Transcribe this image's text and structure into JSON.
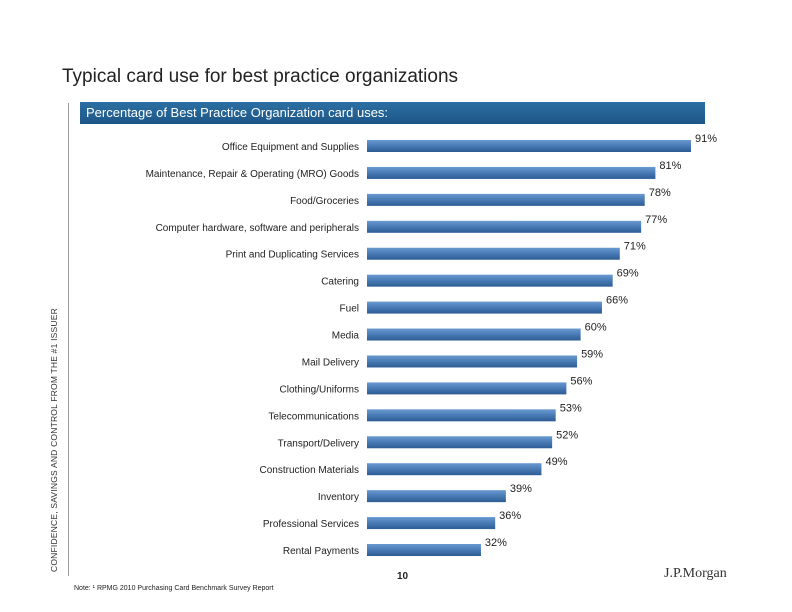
{
  "title": "Typical card use for best practice organizations",
  "banner": "Percentage of  Best Practice Organization card uses:",
  "side_text": "CONFIDENCE, SAVINGS AND CONTROL FROM THE #1 ISSUER",
  "page_number": "10",
  "note": "Note: ¹ RPMG 2010 Purchasing Card Benchmark Survey Report",
  "logo": "J.P.Morgan",
  "colors": {
    "banner": "#1f5f91",
    "bar_top": "#5d8fc4",
    "bar_bottom": "#2e5f97"
  },
  "chart_data": {
    "type": "bar",
    "orientation": "horizontal",
    "title": "Percentage of  Best Practice Organization card uses:",
    "categories": [
      "Office Equipment and Supplies",
      "Maintenance, Repair & Operating (MRO) Goods",
      "Food/Groceries",
      "Computer hardware, software and peripherals",
      "Print and Duplicating Services",
      "Catering",
      "Fuel",
      "Media",
      "Mail Delivery",
      "Clothing/Uniforms",
      "Telecommunications",
      "Transport/Delivery",
      "Construction Materials",
      "Inventory",
      "Professional Services",
      "Rental Payments"
    ],
    "values": [
      91,
      81,
      78,
      77,
      71,
      69,
      66,
      60,
      59,
      56,
      53,
      52,
      49,
      39,
      36,
      32
    ],
    "value_labels": [
      "91%",
      "81%",
      "78%",
      "77%",
      "71%",
      "69%",
      "66%",
      "60%",
      "59%",
      "56%",
      "53%",
      "52%",
      "49%",
      "39%",
      "36%",
      "32%"
    ],
    "unit": "%"
  }
}
